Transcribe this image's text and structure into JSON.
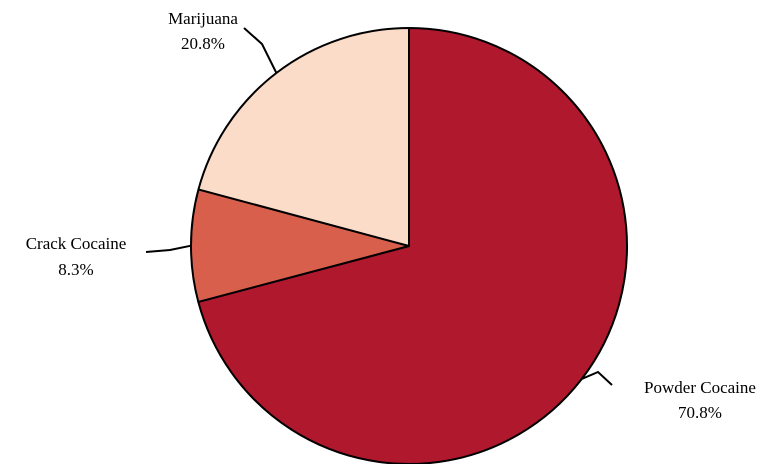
{
  "chart_data": {
    "type": "pie",
    "title": "",
    "slices": [
      {
        "label": "Powder Cocaine",
        "percent_label": "70.8%",
        "value": 70.8,
        "color": "#B0182E"
      },
      {
        "label": "Crack Cocaine",
        "percent_label": "8.3%",
        "value": 8.3,
        "color": "#D75F4C"
      },
      {
        "label": "Marijuana",
        "percent_label": "20.8%",
        "value": 20.8,
        "color": "#FBDCC9"
      }
    ],
    "start_angle_deg": 0,
    "direction": "clockwise",
    "legend": "none",
    "slice_border_color": "#000000"
  }
}
